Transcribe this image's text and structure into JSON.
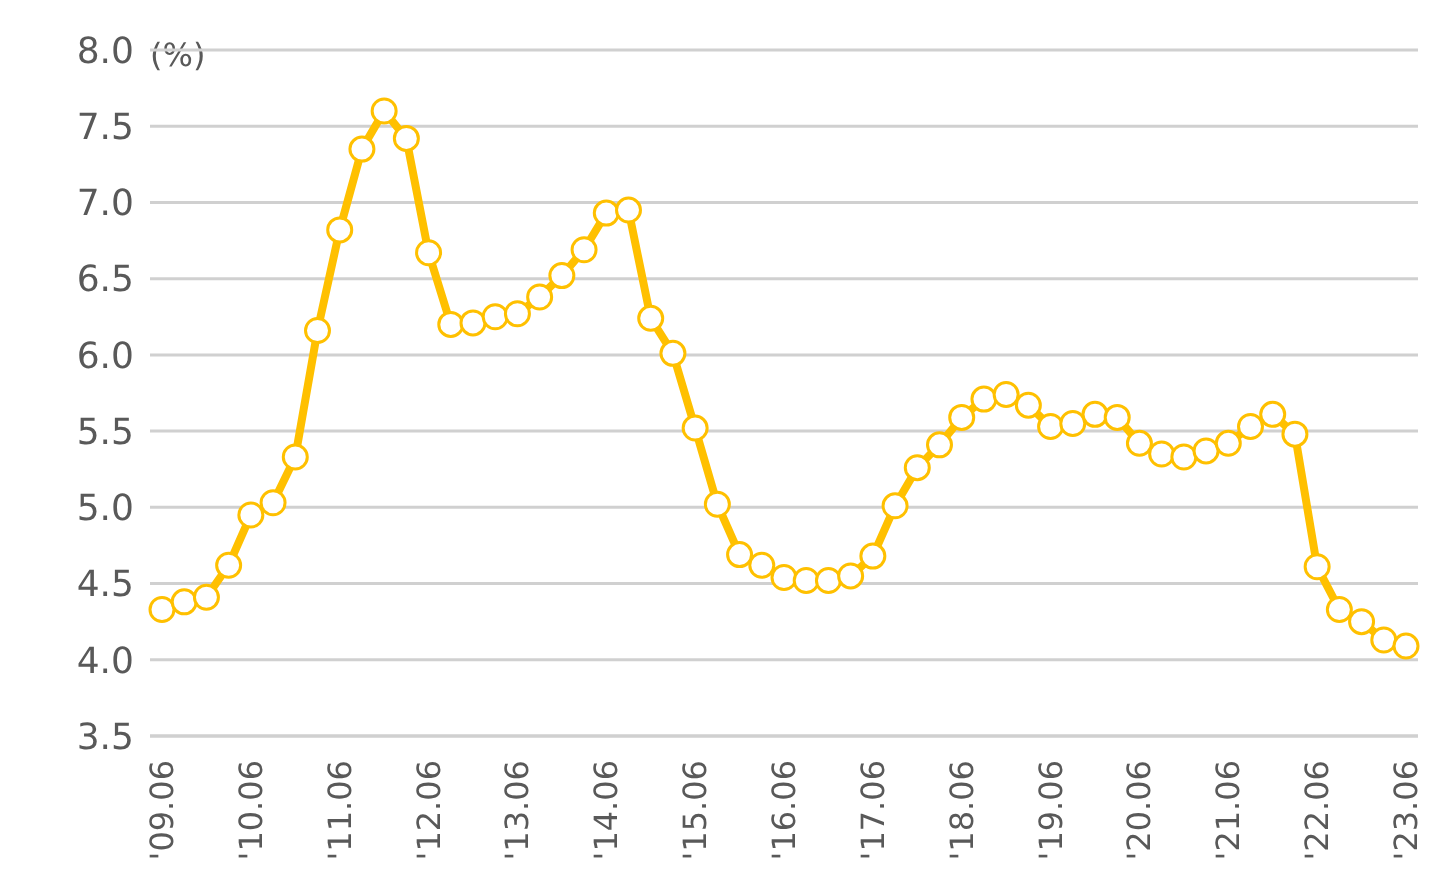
{
  "chart_data": {
    "type": "line",
    "ylabel": "(%)",
    "categories": [
      "'09.06",
      null,
      null,
      null,
      "'10.06",
      null,
      null,
      null,
      "'11.06",
      null,
      null,
      null,
      "'12.06",
      null,
      null,
      null,
      "'13.06",
      null,
      null,
      null,
      "'14.06",
      null,
      null,
      null,
      "'15.06",
      null,
      null,
      null,
      "'16.06",
      null,
      null,
      null,
      "'17.06",
      null,
      null,
      null,
      "'18.06",
      null,
      null,
      null,
      "'19.06",
      null,
      null,
      null,
      "'20.06",
      null,
      null,
      null,
      "'21.06",
      null,
      null,
      null,
      "'22.06",
      null,
      null,
      null,
      "'23.06"
    ],
    "series": [
      {
        "color": "#ffc000",
        "values": [
          4.33,
          4.38,
          4.41,
          4.62,
          4.95,
          5.03,
          5.33,
          6.16,
          6.82,
          7.35,
          7.6,
          7.42,
          6.67,
          6.2,
          6.21,
          6.25,
          6.27,
          6.38,
          6.52,
          6.69,
          6.93,
          6.95,
          6.24,
          6.01,
          5.52,
          5.02,
          4.69,
          4.62,
          4.54,
          4.52,
          4.52,
          4.55,
          4.68,
          5.01,
          5.26,
          5.41,
          5.59,
          5.71,
          5.74,
          5.67,
          5.53,
          5.55,
          5.61,
          5.59,
          5.42,
          5.35,
          5.33,
          5.37,
          5.42,
          5.53,
          5.61,
          5.48,
          4.61,
          4.33,
          4.25,
          4.13,
          4.09
        ]
      }
    ],
    "ylim": [
      3.5,
      8
    ],
    "yticks": [
      {
        "value": 3.5,
        "label": "3.5"
      },
      {
        "value": 4,
        "label": "4.0"
      },
      {
        "value": 4.5,
        "label": "4.5"
      },
      {
        "value": 5,
        "label": "5.0"
      },
      {
        "value": 5.5,
        "label": "5.5"
      },
      {
        "value": 6,
        "label": "6.0"
      },
      {
        "value": 6.5,
        "label": "6.5"
      },
      {
        "value": 7,
        "label": "7.0"
      },
      {
        "value": 7.5,
        "label": "7.5"
      },
      {
        "value": 8,
        "label": "8.0"
      }
    ],
    "grid": "y",
    "marker": "circle",
    "line_style": "solid"
  }
}
